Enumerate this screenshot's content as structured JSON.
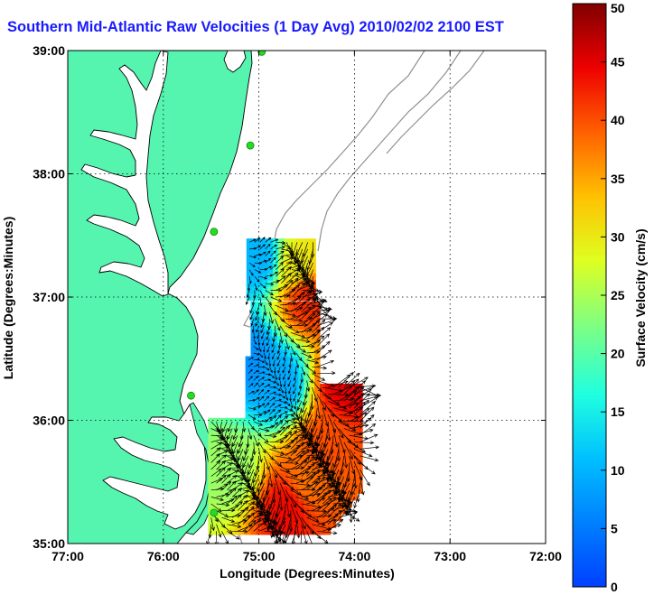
{
  "title": "Southern Mid-Atlantic Raw Velocities (1 Day Avg) 2010/02/02 2100 EST",
  "colors": {
    "land": "#55f5b0",
    "title": "#1a1aff",
    "coastline": "#000000",
    "bathymetry": "#909090",
    "grid": "#000000",
    "station": "#22dd22"
  },
  "chart_data": {
    "type": "map",
    "xlabel": "Longitude (Degrees:Minutes)",
    "ylabel": "Latitude (Degrees:Minutes)",
    "xlim": [
      -77,
      -72
    ],
    "ylim": [
      35,
      39
    ],
    "x_ticks": [
      {
        "value": -77,
        "label": "77:00"
      },
      {
        "value": -76,
        "label": "76:00"
      },
      {
        "value": -75,
        "label": "75:00"
      },
      {
        "value": -74,
        "label": "74:00"
      },
      {
        "value": -73,
        "label": "73:00"
      },
      {
        "value": -72,
        "label": "72:00"
      }
    ],
    "y_ticks": [
      {
        "value": 35,
        "label": "35:00"
      },
      {
        "value": 36,
        "label": "36:00"
      },
      {
        "value": 37,
        "label": "37:00"
      },
      {
        "value": 38,
        "label": "38:00"
      },
      {
        "value": 39,
        "label": "39:00"
      }
    ],
    "grid": "dotted",
    "colorbar": {
      "label": "Surface Velocity (cm/s)",
      "min": 0,
      "max": 50,
      "ticks": [
        "0",
        "5",
        "10",
        "15",
        "20",
        "25",
        "30",
        "35",
        "40",
        "45",
        "50"
      ],
      "colormap": "jet"
    },
    "stations": [
      {
        "lon": -74.97,
        "lat": 38.99
      },
      {
        "lon": -75.09,
        "lat": 38.23
      },
      {
        "lon": -75.47,
        "lat": 37.53
      },
      {
        "lon": -75.71,
        "lat": 36.2
      },
      {
        "lon": -75.47,
        "lat": 35.25
      }
    ],
    "velocity_field": {
      "grid_step_deg": 0.0556,
      "regions": [
        {
          "name": "north",
          "lon_range": [
            -75.1,
            -74.4
          ],
          "lat_range": [
            37.0,
            37.5
          ]
        },
        {
          "name": "south",
          "lon_range": [
            -75.5,
            -73.9
          ],
          "lat_range": [
            35.1,
            36.95
          ]
        }
      ],
      "speed_pattern": [
        {
          "lon": -75.0,
          "lat": 37.3,
          "speed": 10
        },
        {
          "lon": -74.6,
          "lat": 37.25,
          "speed": 30
        },
        {
          "lon": -74.5,
          "lat": 37.0,
          "speed": 42
        },
        {
          "lon": -75.1,
          "lat": 36.5,
          "speed": 7
        },
        {
          "lon": -74.8,
          "lat": 36.3,
          "speed": 9
        },
        {
          "lon": -74.1,
          "lat": 36.3,
          "speed": 45
        },
        {
          "lon": -74.3,
          "lat": 35.8,
          "speed": 40
        },
        {
          "lon": -74.5,
          "lat": 35.5,
          "speed": 38
        },
        {
          "lon": -74.7,
          "lat": 35.3,
          "speed": 44
        },
        {
          "lon": -75.3,
          "lat": 35.6,
          "speed": 24
        }
      ]
    }
  }
}
